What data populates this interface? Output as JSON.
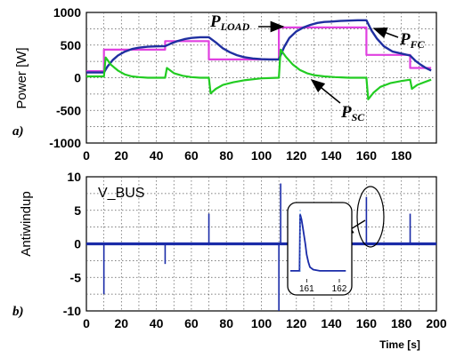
{
  "chart_data": [
    {
      "type": "line",
      "panel_label": "a)",
      "ylabel": "Power [W]",
      "xlim": [
        0,
        200
      ],
      "ylim": [
        -1000,
        1000
      ],
      "xticks": [
        0,
        20,
        40,
        60,
        80,
        100,
        120,
        140,
        160,
        180
      ],
      "yticks": [
        1000,
        500,
        0,
        -500,
        -1000
      ],
      "grid": true,
      "annotations": [
        {
          "name": "load",
          "main": "P",
          "sub": "LOAD"
        },
        {
          "name": "fc",
          "main": "P",
          "sub": "FC"
        },
        {
          "name": "sc",
          "main": "P",
          "sub": "SC"
        }
      ],
      "series": [
        {
          "key": "load",
          "color": "#e040e0",
          "x": [
            0,
            10,
            10,
            45,
            45,
            70,
            70,
            110,
            110,
            160,
            160,
            185,
            185,
            197
          ],
          "y": [
            100,
            100,
            430,
            430,
            560,
            560,
            280,
            280,
            770,
            770,
            350,
            350,
            150,
            150
          ]
        },
        {
          "key": "fc",
          "color": "#1f2fa0",
          "x": [
            0,
            10,
            12,
            15,
            18,
            22,
            26,
            30,
            35,
            40,
            45,
            48,
            52,
            56,
            60,
            65,
            70,
            74,
            78,
            82,
            86,
            90,
            95,
            100,
            105,
            110,
            113,
            116,
            120,
            124,
            128,
            132,
            136,
            140,
            145,
            150,
            155,
            160,
            163,
            166,
            170,
            175,
            180,
            185,
            188,
            191,
            194,
            197
          ],
          "y": [
            80,
            80,
            170,
            270,
            340,
            400,
            440,
            460,
            475,
            480,
            485,
            520,
            560,
            590,
            610,
            620,
            620,
            540,
            450,
            390,
            345,
            315,
            295,
            285,
            280,
            280,
            470,
            610,
            710,
            770,
            810,
            840,
            855,
            860,
            870,
            875,
            880,
            880,
            720,
            600,
            480,
            400,
            370,
            340,
            260,
            200,
            150,
            110
          ]
        },
        {
          "key": "sc",
          "color": "#22cc22",
          "x": [
            0,
            10,
            11,
            14,
            18,
            22,
            26,
            30,
            35,
            40,
            45,
            46,
            50,
            55,
            60,
            65,
            70,
            71,
            74,
            78,
            84,
            90,
            100,
            110,
            111,
            114,
            118,
            122,
            126,
            130,
            136,
            142,
            150,
            160,
            161,
            164,
            168,
            174,
            180,
            185,
            186,
            189,
            193,
            197
          ],
          "y": [
            20,
            20,
            310,
            200,
            110,
            50,
            20,
            10,
            0,
            0,
            0,
            150,
            70,
            30,
            10,
            0,
            0,
            -240,
            -170,
            -110,
            -70,
            -40,
            -10,
            0,
            430,
            320,
            200,
            120,
            70,
            40,
            20,
            10,
            0,
            0,
            -330,
            -230,
            -140,
            -80,
            -50,
            -30,
            -170,
            -110,
            -70,
            -30
          ]
        }
      ]
    },
    {
      "type": "line",
      "panel_label": "b)",
      "ylabel": "Antiwindup",
      "xlabel": "Time [s]",
      "xlim": [
        0,
        200
      ],
      "ylim": [
        -10,
        10
      ],
      "xticks": [
        0,
        20,
        40,
        60,
        80,
        100,
        120,
        140,
        160,
        180,
        200
      ],
      "yticks": [
        10,
        5,
        0,
        -5,
        -10
      ],
      "grid": true,
      "legend_text": "V_BUS",
      "series": [
        {
          "key": "vbus",
          "color": "#1a2ba8",
          "baseline": 0,
          "spikes": [
            {
              "x": 10,
              "y": -7.5
            },
            {
              "x": 45,
              "y": -3
            },
            {
              "x": 70,
              "y": 4.5
            },
            {
              "x": 110,
              "y": -10
            },
            {
              "x": 111,
              "y": 9
            },
            {
              "x": 160,
              "y": 7
            },
            {
              "x": 185,
              "y": 4.5
            }
          ]
        }
      ],
      "inset": {
        "xlim": [
          160.5,
          162.3
        ],
        "xticks": [
          161,
          162
        ],
        "x": [
          160.5,
          160.78,
          160.8,
          160.84,
          160.88,
          160.92,
          160.96,
          161.0,
          161.05,
          161.1,
          161.2,
          161.4,
          161.8,
          162.2
        ],
        "y": [
          -4,
          -4,
          5,
          4.2,
          3,
          1.6,
          0.2,
          -1.4,
          -2.6,
          -3.4,
          -3.8,
          -4,
          -4,
          -4
        ]
      }
    }
  ]
}
